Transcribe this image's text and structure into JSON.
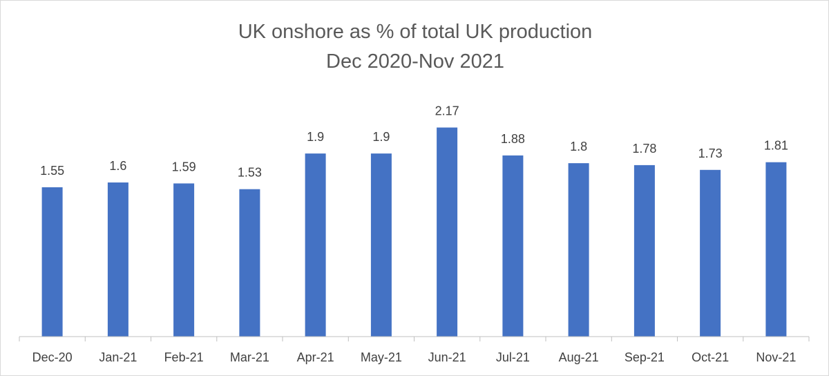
{
  "chart_data": {
    "type": "bar",
    "title": "UK onshore as % of total UK production",
    "subtitle": "Dec 2020-Nov 2021",
    "categories": [
      "Dec-20",
      "Jan-21",
      "Feb-21",
      "Mar-21",
      "Apr-21",
      "May-21",
      "Jun-21",
      "Jul-21",
      "Aug-21",
      "Sep-21",
      "Oct-21",
      "Nov-21"
    ],
    "values": [
      1.55,
      1.6,
      1.59,
      1.53,
      1.9,
      1.9,
      2.17,
      1.88,
      1.8,
      1.78,
      1.73,
      1.81
    ],
    "data_labels": [
      "1.55",
      "1.6",
      "1.59",
      "1.53",
      "1.9",
      "1.9",
      "2.17",
      "1.88",
      "1.8",
      "1.78",
      "1.73",
      "1.81"
    ],
    "xlabel": "",
    "ylabel": "",
    "ylim": [
      0,
      2.4
    ],
    "grid": false,
    "legend": "none",
    "bar_color": "#4472C4"
  }
}
